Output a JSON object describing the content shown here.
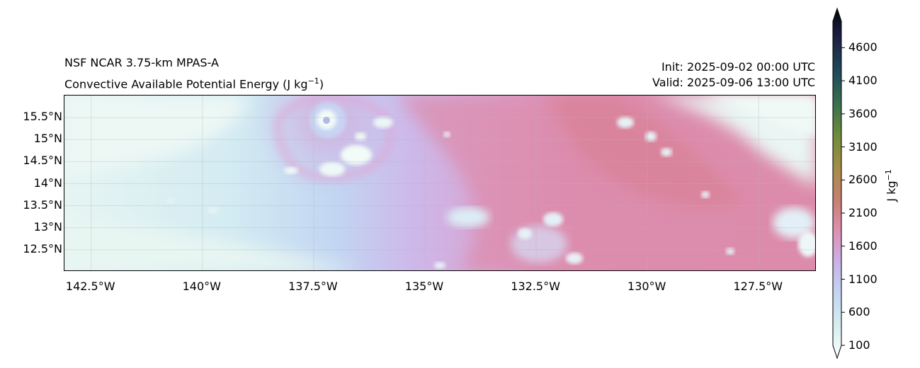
{
  "title": {
    "model": "NSF NCAR 3.75-km MPAS-A",
    "field_prefix": "Convective Available Potential Energy (J kg",
    "field_exp": "−1",
    "field_suffix": ")",
    "init": "Init: 2025-09-02 00:00 UTC",
    "valid": "Valid: 2025-09-06 13:00 UTC"
  },
  "axes": {
    "lat_ticks": [
      "15.5°N",
      "15°N",
      "14.5°N",
      "14°N",
      "13.5°N",
      "13°N",
      "12.5°N"
    ],
    "lat_values": [
      15.5,
      15.0,
      14.5,
      14.0,
      13.5,
      13.0,
      12.5
    ],
    "lon_ticks": [
      "142.5°W",
      "140°W",
      "137.5°W",
      "135°W",
      "132.5°W",
      "130°W",
      "127.5°W"
    ],
    "lon_values": [
      -142.5,
      -140.0,
      -137.5,
      -135.0,
      -132.5,
      -130.0,
      -127.5
    ],
    "lon_range": [
      -143.1,
      -126.2
    ],
    "lat_range": [
      12.0,
      16.0
    ],
    "grid": true
  },
  "colorbar": {
    "label": "J kg",
    "label_exp": "−1",
    "ticks": [
      "4600",
      "4100",
      "3600",
      "3100",
      "2600",
      "2100",
      "1600",
      "1100",
      "600",
      "100"
    ],
    "tick_values": [
      4600,
      4100,
      3600,
      3100,
      2600,
      2100,
      1600,
      1100,
      600,
      100
    ],
    "range": [
      100,
      5000
    ],
    "extend": "both",
    "colors": [
      "#ffffff",
      "#d6eef0",
      "#c3d6f3",
      "#c9b3ea",
      "#df8fb0",
      "#c68070",
      "#a58d48",
      "#6e8c3a",
      "#3a7050",
      "#1f4a5a",
      "#1e2346",
      "#050510"
    ]
  },
  "map_features": {
    "cyclone_eye": {
      "lon": -137.0,
      "lat": 15.45
    },
    "high_cape_color": "#dc8aa8",
    "low_cape_color": "#eef8f6"
  }
}
